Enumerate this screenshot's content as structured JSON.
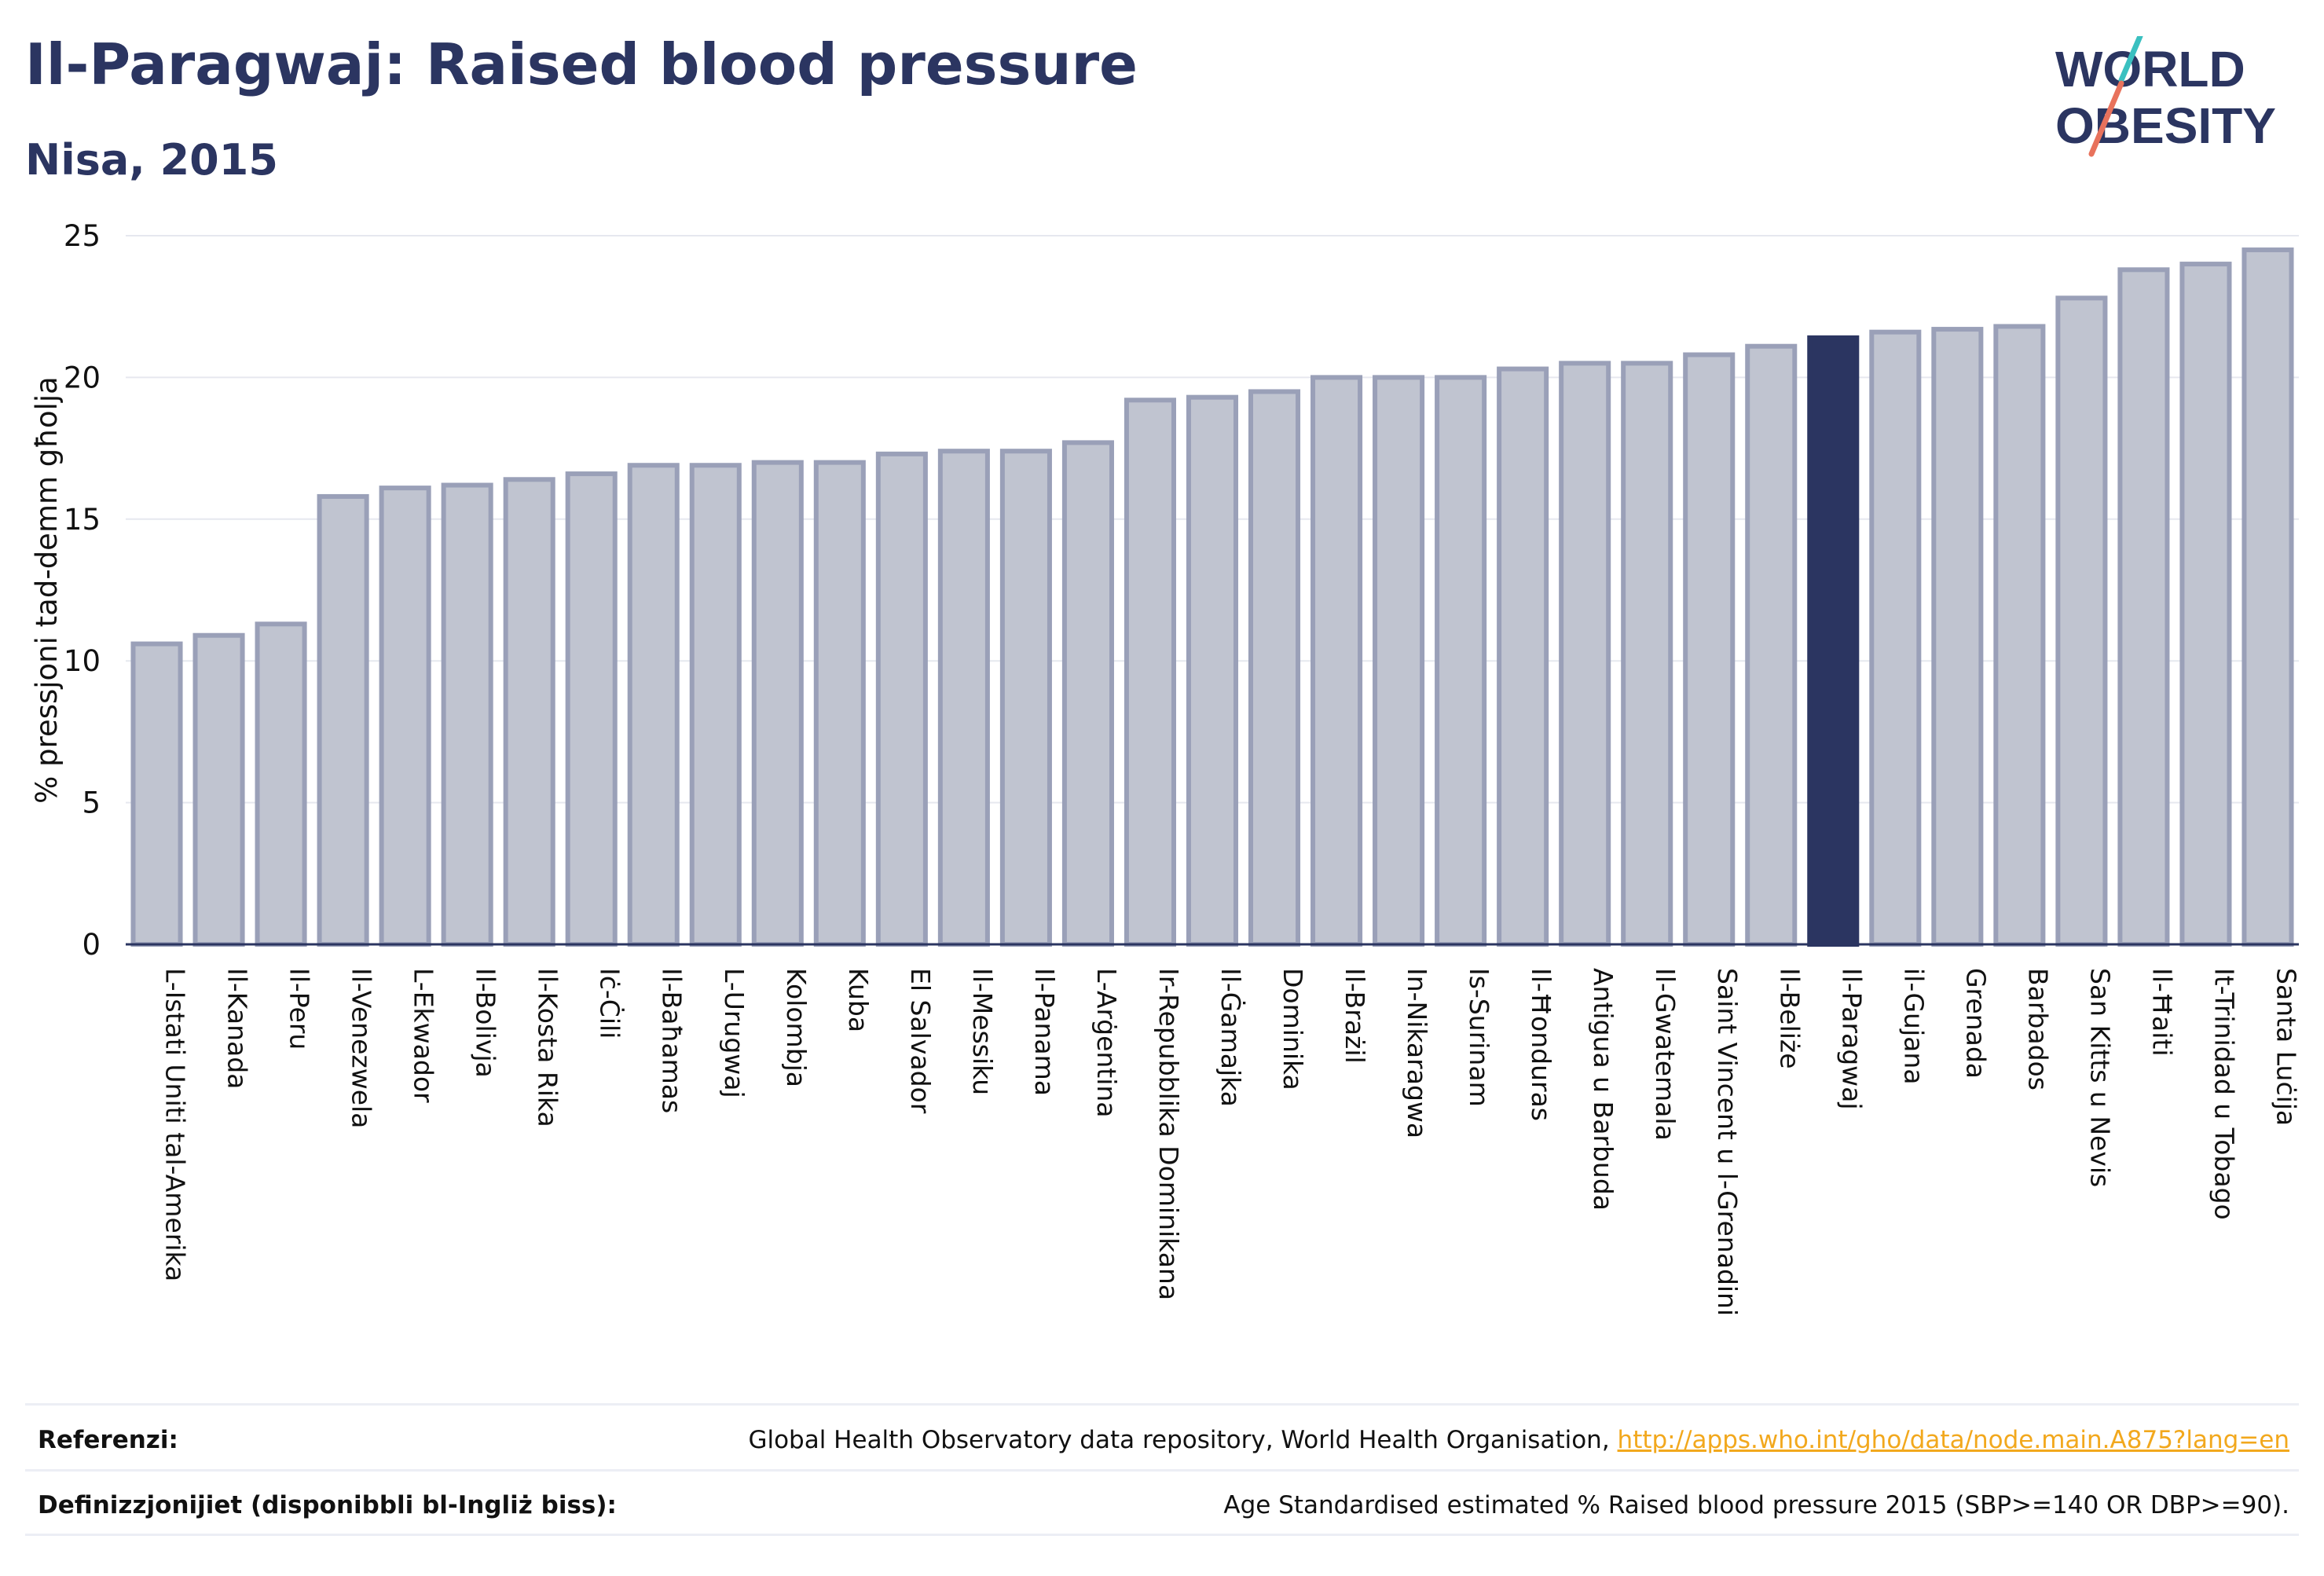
{
  "header": {
    "title": "Il-Paragwaj: Raised blood pressure",
    "subtitle": "Nisa, 2015"
  },
  "logo": {
    "line1": "WORLD",
    "line2": "OBESITY"
  },
  "colors": {
    "bar": "#c0c4d0",
    "bar_border": "#9aa0b8",
    "highlight": "#2b3561",
    "text": "#2b3561",
    "grid": "#e6e8ef",
    "link": "#f2a81d",
    "logo_teal": "#3ac0c0",
    "logo_coral": "#e8725c"
  },
  "chart_data": {
    "type": "bar",
    "title": "Il-Paragwaj: Raised blood pressure",
    "subtitle": "Nisa, 2015",
    "xlabel": "",
    "ylabel": "% pressjoni tad-demm għolja",
    "ylim": [
      0,
      25
    ],
    "yticks": [
      0,
      5,
      10,
      15,
      20,
      25
    ],
    "grid": true,
    "highlight": "Il-Paragwaj",
    "categories": [
      "L-Istati Uniti tal-Amerika",
      "Il-Kanada",
      "Il-Peru",
      "Il-Venezwela",
      "L-Ekwador",
      "Il-Bolivja",
      "Il-Kosta Rika",
      "Iċ-Ċili",
      "Il-Baħamas",
      "L-Urugwaj",
      "Kolombja",
      "Kuba",
      "El Salvador",
      "Il-Messiku",
      "Il-Panama",
      "L-Arġentina",
      "Ir-Repubblika Dominikana",
      "Il-Ġamajka",
      "Dominika",
      "Il-Brażil",
      "In-Nikaragwa",
      "Is-Surinam",
      "Il-Ħonduras",
      "Antigua u Barbuda",
      "Il-Gwatemala",
      "Saint Vincent u l-Grenadini",
      "Il-Beliże",
      "Il-Paragwaj",
      "il-Gujana",
      "Grenada",
      "Barbados",
      "San Kitts u Nevis",
      "Il-Ħaiti",
      "It-Trinidad u Tobago",
      "Santa Luċija"
    ],
    "values": [
      10.6,
      10.9,
      11.3,
      15.8,
      16.1,
      16.2,
      16.4,
      16.6,
      16.9,
      16.9,
      17.0,
      17.0,
      17.3,
      17.4,
      17.4,
      17.7,
      19.2,
      19.3,
      19.5,
      20.0,
      20.0,
      20.0,
      20.3,
      20.5,
      20.5,
      20.8,
      21.1,
      21.4,
      21.6,
      21.7,
      21.8,
      22.8,
      23.8,
      24.0,
      24.5
    ]
  },
  "footer": {
    "references_label": "Referenzi:",
    "references_text": "Global Health Observatory data repository, World Health Organisation,",
    "references_link": "http://apps.who.int/gho/data/node.main.A875?lang=en",
    "definitions_label": "Definizzjonijiet (disponibbli bl-Ingliż biss):",
    "definitions_text": "Age Standardised estimated % Raised blood pressure 2015 (SBP>=140 OR DBP>=90)."
  }
}
